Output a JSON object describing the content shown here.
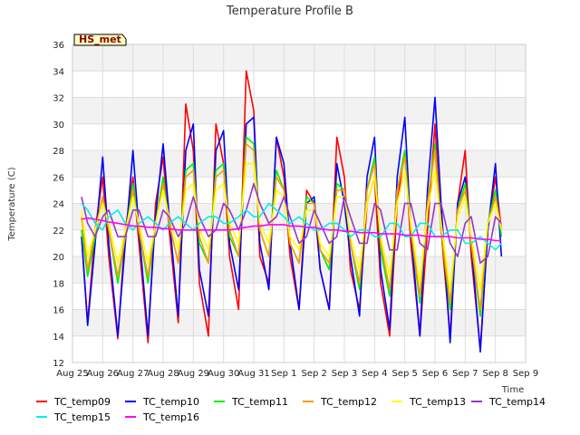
{
  "chart_data": {
    "type": "line",
    "title": "Temperature Profile B",
    "xlabel": "Time",
    "ylabel": "Temperature (C)",
    "ylim": [
      12,
      36
    ],
    "xlim": [
      "Aug 25",
      "Sep 9"
    ],
    "yticks": [
      12,
      14,
      16,
      18,
      20,
      22,
      24,
      26,
      28,
      30,
      32,
      34,
      36
    ],
    "xticks": [
      "Aug 25",
      "Aug 26",
      "Aug 27",
      "Aug 28",
      "Aug 29",
      "Aug 30",
      "Aug 31",
      "Sep 1",
      "Sep 2",
      "Sep 3",
      "Sep 4",
      "Sep 5",
      "Sep 6",
      "Sep 7",
      "Sep 8",
      "Sep 9"
    ],
    "grid": true,
    "legend_position": "bottom",
    "annotation": "HS_met",
    "x": [
      25.3,
      25.5,
      25.75,
      26.0,
      26.2,
      26.5,
      26.75,
      27.0,
      27.2,
      27.5,
      27.75,
      28.0,
      28.2,
      28.5,
      28.75,
      29.0,
      29.2,
      29.5,
      29.75,
      30.0,
      30.2,
      30.5,
      30.75,
      31.0,
      31.2,
      31.5,
      31.75,
      32.0,
      32.2,
      32.5,
      32.75,
      33.0,
      33.2,
      33.5,
      33.75,
      34.0,
      34.2,
      34.5,
      34.75,
      35.0,
      35.2,
      35.5,
      35.75,
      36.0,
      36.2,
      36.5,
      36.75,
      37.0,
      37.2,
      37.5,
      37.75,
      38.0,
      38.2,
      38.5,
      38.75,
      39.0,
      39.2
    ],
    "series": [
      {
        "name": "TC_temp09",
        "color": "#ff0000",
        "values": [
          21.5,
          15.0,
          22.0,
          26.0,
          20.0,
          13.8,
          22.0,
          26.0,
          21.0,
          13.5,
          24.0,
          27.5,
          22.0,
          15.0,
          31.5,
          28.0,
          18.0,
          14.0,
          30.0,
          27.0,
          20.0,
          16.0,
          34.0,
          31.0,
          20.0,
          18.0,
          29.0,
          26.0,
          20.0,
          16.0,
          25.0,
          24.0,
          19.0,
          16.0,
          29.0,
          26.0,
          19.0,
          16.0,
          24.0,
          26.0,
          18.0,
          14.0,
          24.0,
          28.0,
          21.0,
          14.0,
          22.0,
          30.0,
          22.0,
          14.0,
          24.0,
          28.0,
          20.0,
          13.0,
          22.0,
          26.0,
          22.0
        ]
      },
      {
        "name": "TC_temp10",
        "color": "#0000ff",
        "values": [
          21.5,
          14.8,
          21.0,
          27.5,
          21.0,
          14.0,
          21.0,
          28.0,
          22.0,
          14.0,
          23.0,
          28.5,
          23.0,
          15.5,
          28.0,
          30.0,
          19.0,
          15.5,
          28.0,
          29.5,
          21.0,
          17.5,
          30.0,
          30.5,
          21.0,
          17.5,
          29.0,
          27.0,
          21.0,
          16.0,
          24.0,
          24.5,
          19.0,
          16.0,
          27.0,
          24.0,
          20.0,
          15.5,
          26.0,
          29.0,
          19.0,
          14.5,
          26.0,
          30.5,
          22.0,
          14.0,
          25.0,
          32.0,
          24.0,
          13.5,
          24.0,
          26.0,
          21.0,
          12.8,
          22.0,
          27.0,
          20.0
        ]
      },
      {
        "name": "TC_temp11",
        "color": "#00ee00",
        "values": [
          22.0,
          18.5,
          21.5,
          24.5,
          22.0,
          18.0,
          21.5,
          25.5,
          22.0,
          18.0,
          22.5,
          26.0,
          22.5,
          19.5,
          26.5,
          27.0,
          21.0,
          19.5,
          26.5,
          27.0,
          21.5,
          20.0,
          29.0,
          28.5,
          22.0,
          20.0,
          26.5,
          25.0,
          21.0,
          19.5,
          24.5,
          24.0,
          20.5,
          19.0,
          25.5,
          25.0,
          21.0,
          17.5,
          25.0,
          27.5,
          20.5,
          17.0,
          25.0,
          28.0,
          22.0,
          16.5,
          24.0,
          28.5,
          22.0,
          16.0,
          23.5,
          25.5,
          21.0,
          15.5,
          22.5,
          25.0,
          21.5
        ]
      },
      {
        "name": "TC_temp12",
        "color": "#ff9900",
        "values": [
          23.0,
          19.0,
          22.0,
          24.5,
          22.0,
          18.5,
          21.5,
          25.0,
          22.0,
          18.5,
          22.5,
          25.5,
          22.5,
          19.5,
          26.0,
          26.5,
          21.5,
          19.5,
          26.0,
          26.5,
          22.0,
          20.0,
          28.5,
          28.0,
          22.0,
          20.0,
          26.0,
          25.0,
          21.0,
          19.5,
          24.0,
          24.0,
          20.5,
          19.5,
          25.0,
          25.0,
          21.0,
          18.0,
          25.0,
          27.0,
          21.0,
          17.5,
          25.0,
          27.5,
          22.0,
          17.0,
          24.0,
          28.0,
          22.0,
          16.5,
          23.5,
          25.0,
          21.0,
          16.0,
          22.5,
          24.5,
          22.0
        ]
      },
      {
        "name": "TC_temp13",
        "color": "#ffff00",
        "values": [
          23.5,
          20.0,
          22.0,
          24.0,
          22.5,
          19.5,
          22.0,
          24.5,
          22.5,
          19.5,
          22.5,
          25.0,
          23.0,
          20.5,
          25.0,
          25.5,
          22.0,
          20.5,
          25.0,
          25.5,
          22.5,
          21.0,
          27.0,
          27.0,
          22.5,
          21.0,
          25.0,
          24.5,
          21.5,
          20.5,
          23.5,
          23.5,
          21.0,
          20.0,
          24.5,
          24.5,
          21.5,
          19.0,
          24.0,
          26.0,
          21.5,
          18.5,
          24.0,
          26.5,
          22.5,
          18.0,
          23.5,
          26.5,
          22.5,
          17.5,
          23.0,
          24.5,
          21.5,
          17.5,
          22.5,
          24.0,
          22.0
        ]
      },
      {
        "name": "TC_temp14",
        "color": "#9933cc",
        "values": [
          24.5,
          22.5,
          21.5,
          23.0,
          23.5,
          21.5,
          21.5,
          23.5,
          23.5,
          21.5,
          21.5,
          23.5,
          23.0,
          21.5,
          22.5,
          24.5,
          23.0,
          21.5,
          22.0,
          24.0,
          23.5,
          22.0,
          23.5,
          25.5,
          24.0,
          22.5,
          23.0,
          24.5,
          23.0,
          21.0,
          21.5,
          23.5,
          22.5,
          21.0,
          21.5,
          24.5,
          23.0,
          21.0,
          21.0,
          24.0,
          23.5,
          20.5,
          20.5,
          24.0,
          24.0,
          21.0,
          20.5,
          24.0,
          24.0,
          21.0,
          20.0,
          22.5,
          23.0,
          19.5,
          20.0,
          23.0,
          22.5
        ]
      },
      {
        "name": "TC_temp15",
        "color": "#00eeee",
        "values": [
          24.0,
          23.5,
          22.5,
          22.0,
          23.0,
          23.5,
          22.5,
          22.0,
          22.5,
          23.0,
          22.5,
          22.0,
          22.5,
          23.0,
          22.5,
          22.0,
          22.5,
          23.0,
          23.0,
          22.5,
          22.5,
          23.0,
          23.5,
          23.0,
          23.0,
          24.0,
          23.5,
          23.0,
          22.5,
          23.0,
          22.5,
          22.0,
          22.0,
          22.5,
          22.5,
          22.0,
          21.5,
          22.0,
          22.0,
          21.5,
          21.5,
          22.5,
          22.5,
          21.5,
          21.5,
          22.5,
          22.5,
          21.5,
          21.5,
          22.0,
          22.0,
          21.0,
          21.0,
          21.5,
          21.0,
          20.5,
          21.0
        ]
      },
      {
        "name": "TC_temp16",
        "color": "#ff00ff",
        "values": [
          22.8,
          22.9,
          22.8,
          22.7,
          22.6,
          22.5,
          22.4,
          22.3,
          22.3,
          22.2,
          22.2,
          22.1,
          22.1,
          22.0,
          22.0,
          22.0,
          22.0,
          22.0,
          22.0,
          22.0,
          22.0,
          22.1,
          22.2,
          22.3,
          22.3,
          22.4,
          22.4,
          22.4,
          22.3,
          22.3,
          22.2,
          22.2,
          22.1,
          22.0,
          22.0,
          21.9,
          21.9,
          21.8,
          21.8,
          21.8,
          21.7,
          21.7,
          21.7,
          21.6,
          21.6,
          21.6,
          21.5,
          21.5,
          21.5,
          21.5,
          21.4,
          21.4,
          21.4,
          21.3,
          21.3,
          21.2,
          21.2
        ]
      }
    ]
  }
}
